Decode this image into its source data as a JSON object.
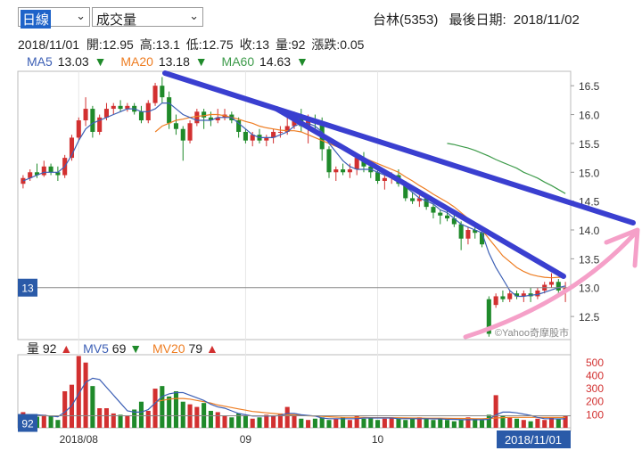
{
  "controls": {
    "period": "日線",
    "indicator": "成交量"
  },
  "header": {
    "stock": "台林(5353)",
    "last_date_label": "最後日期:",
    "last_date": "2018/11/02"
  },
  "ohlc": {
    "date": "2018/11/01",
    "open_label": "開:",
    "open": "12.95",
    "high_label": "高:",
    "high": "13.1",
    "low_label": "低:",
    "low": "12.75",
    "close_label": "收:",
    "close": "13",
    "volume_label": "量:",
    "volume": "92",
    "change_label": "漲跌:",
    "change": "0.05"
  },
  "ma": [
    {
      "name": "MA5",
      "value": "13.03",
      "arrow": "▼"
    },
    {
      "name": "MA20",
      "value": "13.18",
      "arrow": "▼"
    },
    {
      "name": "MA60",
      "value": "14.63",
      "arrow": "▼"
    }
  ],
  "vol_legend": [
    {
      "name": "量",
      "value": "92",
      "arrow": "▲"
    },
    {
      "name": "MV5",
      "value": "69",
      "arrow": "▼"
    },
    {
      "name": "MV20",
      "value": "79",
      "arrow": "▲"
    }
  ],
  "watermark": "©Yahoo奇摩股市",
  "price_marker": "13",
  "volume_marker": "92",
  "date_marker": "2018/11/01",
  "colors": {
    "up": "#d23030",
    "down": "#1f8a2a",
    "ma5": "#3c5fb5",
    "ma20": "#ee7d22",
    "ma60": "#3d9b4a",
    "trend": "#3a3fd0",
    "arrow": "#f5a0c8"
  },
  "chart_data": {
    "type": "candlestick",
    "price_axis": {
      "ticks": [
        12.5,
        13.0,
        13.5,
        14.0,
        14.5,
        15.0,
        15.5,
        16.0,
        16.5
      ],
      "ylim": [
        12.1,
        16.75
      ]
    },
    "volume_axis": {
      "ticks": [
        100,
        200,
        300,
        400,
        500
      ],
      "ylim": [
        0,
        560
      ]
    },
    "x_ticks": [
      {
        "label": "2018/08",
        "index": 8
      },
      {
        "label": "09",
        "index": 32
      },
      {
        "label": "10",
        "index": 51
      }
    ],
    "candles": [
      [
        14.8,
        14.95,
        14.72,
        14.9,
        120
      ],
      [
        14.9,
        15.05,
        14.85,
        15.0,
        95
      ],
      [
        15.0,
        15.15,
        14.9,
        14.95,
        85
      ],
      [
        14.95,
        15.2,
        14.92,
        15.1,
        100
      ],
      [
        15.1,
        15.15,
        14.95,
        15.0,
        90
      ],
      [
        15.0,
        15.1,
        14.85,
        14.95,
        60
      ],
      [
        14.95,
        15.3,
        14.9,
        15.25,
        280
      ],
      [
        15.25,
        15.65,
        15.2,
        15.6,
        330
      ],
      [
        15.6,
        15.95,
        15.55,
        15.9,
        550
      ],
      [
        15.9,
        16.3,
        15.8,
        16.1,
        500
      ],
      [
        16.1,
        16.15,
        15.6,
        15.7,
        320
      ],
      [
        15.7,
        16.0,
        15.65,
        15.95,
        150
      ],
      [
        15.95,
        16.2,
        15.9,
        16.1,
        150
      ],
      [
        16.1,
        16.2,
        16.0,
        16.15,
        110
      ],
      [
        16.15,
        16.25,
        16.05,
        16.1,
        100
      ],
      [
        16.1,
        16.2,
        16.05,
        16.15,
        90
      ],
      [
        16.15,
        16.2,
        16.0,
        16.05,
        140
      ],
      [
        16.05,
        16.15,
        15.85,
        15.9,
        200
      ],
      [
        15.9,
        16.25,
        15.85,
        16.2,
        130
      ],
      [
        16.2,
        16.55,
        16.15,
        16.5,
        300
      ],
      [
        16.5,
        16.65,
        16.2,
        16.3,
        320
      ],
      [
        16.3,
        16.4,
        15.75,
        15.85,
        240
      ],
      [
        15.85,
        16.0,
        15.65,
        15.75,
        280
      ],
      [
        15.75,
        15.8,
        15.2,
        15.55,
        200
      ],
      [
        15.55,
        15.9,
        15.5,
        15.85,
        180
      ],
      [
        15.85,
        16.1,
        15.8,
        16.05,
        160
      ],
      [
        16.05,
        16.1,
        15.75,
        15.95,
        190
      ],
      [
        15.95,
        16.05,
        15.8,
        15.9,
        130
      ],
      [
        15.9,
        16.1,
        15.85,
        15.95,
        120
      ],
      [
        15.95,
        16.1,
        15.9,
        16.0,
        90
      ],
      [
        16.0,
        16.05,
        15.85,
        15.9,
        80
      ],
      [
        15.9,
        15.95,
        15.6,
        15.7,
        110
      ],
      [
        15.7,
        15.75,
        15.5,
        15.55,
        90
      ],
      [
        15.55,
        15.7,
        15.45,
        15.65,
        70
      ],
      [
        15.65,
        15.75,
        15.5,
        15.55,
        80
      ],
      [
        15.55,
        15.65,
        15.45,
        15.6,
        100
      ],
      [
        15.6,
        15.75,
        15.5,
        15.7,
        90
      ],
      [
        15.7,
        15.8,
        15.6,
        15.7,
        110
      ],
      [
        15.7,
        15.95,
        15.65,
        15.8,
        160
      ],
      [
        15.8,
        16.05,
        15.75,
        15.95,
        90
      ],
      [
        15.95,
        16.1,
        15.7,
        15.8,
        70
      ],
      [
        15.8,
        16.0,
        15.5,
        15.9,
        60
      ],
      [
        15.9,
        16.0,
        15.7,
        15.85,
        70
      ],
      [
        15.85,
        15.95,
        15.2,
        15.4,
        80
      ],
      [
        15.4,
        15.45,
        14.9,
        15.0,
        60
      ],
      [
        15.0,
        15.1,
        14.85,
        15.05,
        70
      ],
      [
        15.05,
        15.15,
        14.95,
        15.0,
        80
      ],
      [
        15.0,
        15.15,
        14.9,
        15.05,
        60
      ],
      [
        15.05,
        15.3,
        14.95,
        15.25,
        90
      ],
      [
        15.25,
        15.35,
        15.0,
        15.1,
        70
      ],
      [
        15.1,
        15.15,
        14.9,
        15.0,
        80
      ],
      [
        15.0,
        15.05,
        14.8,
        14.85,
        60
      ],
      [
        14.85,
        14.95,
        14.7,
        14.9,
        70
      ],
      [
        14.9,
        15.0,
        14.8,
        14.95,
        80
      ],
      [
        14.95,
        15.05,
        14.75,
        14.8,
        70
      ],
      [
        14.8,
        14.85,
        14.5,
        14.55,
        60
      ],
      [
        14.55,
        14.65,
        14.45,
        14.5,
        70
      ],
      [
        14.5,
        14.6,
        14.4,
        14.55,
        80
      ],
      [
        14.55,
        14.6,
        14.35,
        14.4,
        70
      ],
      [
        14.4,
        14.45,
        14.2,
        14.3,
        60
      ],
      [
        14.3,
        14.35,
        14.1,
        14.25,
        70
      ],
      [
        14.25,
        14.35,
        14.15,
        14.2,
        60
      ],
      [
        14.2,
        14.3,
        14.05,
        14.1,
        50
      ],
      [
        14.1,
        14.15,
        13.65,
        13.85,
        60
      ],
      [
        13.85,
        14.05,
        13.75,
        14.0,
        80
      ],
      [
        14.0,
        14.05,
        13.85,
        13.95,
        70
      ],
      [
        13.95,
        14.0,
        13.7,
        13.75,
        60
      ],
      [
        12.8,
        12.85,
        12.15,
        12.2,
        100
      ],
      [
        12.7,
        12.9,
        12.65,
        12.85,
        250
      ],
      [
        12.85,
        12.95,
        12.75,
        12.8,
        90
      ],
      [
        12.8,
        12.95,
        12.75,
        12.9,
        80
      ],
      [
        12.9,
        12.95,
        12.8,
        12.85,
        70
      ],
      [
        12.85,
        12.95,
        12.75,
        12.9,
        60
      ],
      [
        12.9,
        13.0,
        12.75,
        12.85,
        50
      ],
      [
        12.85,
        13.0,
        12.8,
        12.95,
        70
      ],
      [
        12.95,
        13.1,
        12.9,
        13.05,
        60
      ],
      [
        13.05,
        13.25,
        13.0,
        13.1,
        80
      ],
      [
        13.1,
        13.15,
        12.9,
        12.95,
        70
      ],
      [
        12.95,
        13.1,
        12.75,
        13.0,
        92
      ]
    ],
    "ma5": [
      14.85,
      14.9,
      14.95,
      15.0,
      15.0,
      15.0,
      15.1,
      15.3,
      15.55,
      15.75,
      15.85,
      15.9,
      15.95,
      16.0,
      16.05,
      16.1,
      16.1,
      16.05,
      16.05,
      16.1,
      16.2,
      16.2,
      16.1,
      16.0,
      15.95,
      15.9,
      15.9,
      15.9,
      15.95,
      15.95,
      15.95,
      15.85,
      15.75,
      15.65,
      15.6,
      15.6,
      15.6,
      15.65,
      15.7,
      15.8,
      15.85,
      15.85,
      15.8,
      15.7,
      15.5,
      15.35,
      15.2,
      15.1,
      15.05,
      15.05,
      15.05,
      15.0,
      14.95,
      14.9,
      14.85,
      14.75,
      14.65,
      14.55,
      14.5,
      14.45,
      14.35,
      14.3,
      14.2,
      14.1,
      14.05,
      14.0,
      13.95,
      13.6,
      13.35,
      13.15,
      12.95,
      12.85,
      12.85,
      12.87,
      12.88,
      12.92,
      12.96,
      13.0,
      13.03
    ],
    "ma20": [
      null,
      null,
      null,
      null,
      null,
      null,
      null,
      null,
      null,
      null,
      null,
      null,
      null,
      null,
      null,
      null,
      null,
      null,
      null,
      15.7,
      15.8,
      15.85,
      15.9,
      15.92,
      15.95,
      15.97,
      15.98,
      16.0,
      16.0,
      15.98,
      15.95,
      15.92,
      15.88,
      15.85,
      15.8,
      15.77,
      15.75,
      15.73,
      15.72,
      15.72,
      15.7,
      15.65,
      15.6,
      15.55,
      15.5,
      15.45,
      15.4,
      15.35,
      15.3,
      15.25,
      15.2,
      15.15,
      15.1,
      15.05,
      15.0,
      14.92,
      14.85,
      14.77,
      14.7,
      14.62,
      14.55,
      14.48,
      14.4,
      14.3,
      14.2,
      14.1,
      14.0,
      13.85,
      13.7,
      13.55,
      13.45,
      13.35,
      13.28,
      13.23,
      13.2,
      13.18,
      13.17,
      13.18,
      13.18
    ],
    "ma60": [
      null,
      null,
      null,
      null,
      null,
      null,
      null,
      null,
      null,
      null,
      null,
      null,
      null,
      null,
      null,
      null,
      null,
      null,
      null,
      null,
      null,
      null,
      null,
      null,
      null,
      null,
      null,
      null,
      null,
      null,
      null,
      null,
      null,
      null,
      null,
      null,
      null,
      null,
      null,
      null,
      null,
      null,
      null,
      null,
      null,
      null,
      null,
      null,
      null,
      null,
      null,
      null,
      null,
      null,
      null,
      null,
      null,
      null,
      null,
      null,
      null,
      15.5,
      15.48,
      15.45,
      15.42,
      15.38,
      15.33,
      15.28,
      15.22,
      15.17,
      15.12,
      15.07,
      15.0,
      14.95,
      14.9,
      14.83,
      14.77,
      14.7,
      14.63
    ],
    "mv5": [
      100,
      100,
      100,
      95,
      90,
      85,
      120,
      170,
      260,
      350,
      380,
      370,
      310,
      250,
      190,
      130,
      120,
      120,
      140,
      190,
      240,
      260,
      270,
      270,
      250,
      230,
      210,
      180,
      160,
      150,
      130,
      110,
      100,
      90,
      90,
      90,
      90,
      95,
      110,
      110,
      100,
      95,
      90,
      75,
      70,
      70,
      70,
      70,
      70,
      75,
      75,
      75,
      75,
      75,
      70,
      70,
      70,
      70,
      70,
      68,
      68,
      65,
      65,
      62,
      62,
      62,
      62,
      65,
      100,
      120,
      120,
      115,
      105,
      95,
      80,
      70,
      70,
      68,
      69
    ],
    "mv20": [
      null,
      null,
      null,
      null,
      null,
      null,
      null,
      null,
      null,
      null,
      null,
      null,
      null,
      null,
      null,
      null,
      null,
      null,
      null,
      200,
      210,
      220,
      225,
      225,
      220,
      210,
      200,
      190,
      175,
      165,
      155,
      145,
      135,
      125,
      120,
      115,
      110,
      105,
      100,
      100,
      95,
      92,
      90,
      88,
      85,
      82,
      80,
      80,
      80,
      80,
      78,
      78,
      78,
      78,
      77,
      76,
      75,
      75,
      74,
      74,
      74,
      73,
      72,
      72,
      71,
      70,
      70,
      72,
      75,
      78,
      80,
      80,
      80,
      80,
      80,
      79,
      79,
      79,
      79
    ]
  }
}
